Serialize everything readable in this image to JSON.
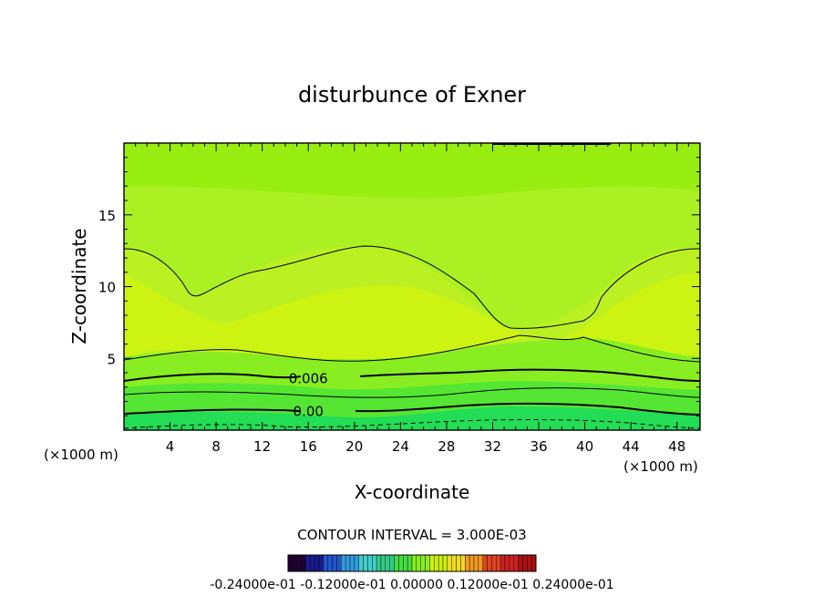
{
  "chart_data": {
    "type": "heatmap",
    "title": "disturbunce of Exner",
    "xlabel": "X-coordinate",
    "ylabel": "Z-coordinate",
    "x_unit_left": "(×1000 m)",
    "x_unit_right": "(×1000 m)",
    "xlim": [
      0,
      50
    ],
    "ylim": [
      0,
      20
    ],
    "x_ticks": [
      "4",
      "8",
      "12",
      "16",
      "20",
      "24",
      "28",
      "32",
      "36",
      "40",
      "44",
      "48"
    ],
    "y_ticks": [
      "5",
      "10",
      "15"
    ],
    "contour_labels": [
      {
        "text": "0.006",
        "x": 16,
        "y": 3.6
      },
      {
        "text": "0.00",
        "x": 16,
        "y": 1.3
      }
    ],
    "contour_interval_text": "CONTOUR INTERVAL = 3.000E-03",
    "colorbar": {
      "labels": [
        "-0.24000e-01",
        "-0.12000e-01",
        "0.00000",
        "0.12000e-01",
        "0.24000e-01"
      ],
      "label_text": "-0.24000e-01 -0.12000e-01 0.00000 0.12000e-01 0.24000e-01",
      "colors": [
        "#200030",
        "#1a1a8c",
        "#2255cc",
        "#3399dd",
        "#44cccc",
        "#33cc88",
        "#44dd44",
        "#88ee22",
        "#ccee11",
        "#eedd22",
        "#ee9922",
        "#dd4422",
        "#cc2222",
        "#aa1111"
      ]
    },
    "field_colors": {
      "top": "#99ee11",
      "upper": "#aaf022",
      "core": "#ccf311",
      "mid": "#bbf022",
      "low1": "#88ee22",
      "low2": "#55e633",
      "bottom": "#22dd55"
    }
  }
}
